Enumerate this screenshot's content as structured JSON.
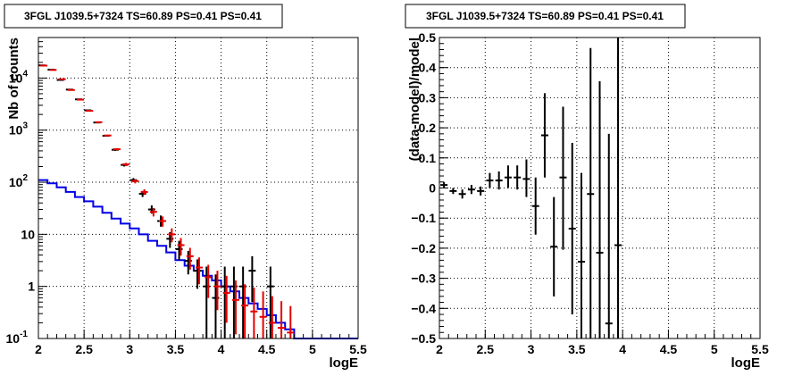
{
  "chart_data": [
    {
      "type": "scatter",
      "title": "3FGL J1039.5+7324 TS=60.89 PS=0.41 PS=0.41",
      "xlabel": "logE",
      "ylabel": "Nb of counts",
      "xlim": [
        2,
        5.5
      ],
      "ylim": [
        0.1,
        60000
      ],
      "yscale": "log",
      "grid": true,
      "x_ticks": [
        "2",
        "2.5",
        "3",
        "3.5",
        "4",
        "4.5",
        "5",
        "5.5"
      ],
      "y_ticks": [
        {
          "base": "10",
          "exp": "-1",
          "value": 0.1
        },
        {
          "base": "1",
          "exp": "",
          "value": 1
        },
        {
          "base": "10",
          "exp": "",
          "value": 10
        },
        {
          "base": "10",
          "exp": "2",
          "value": 100
        },
        {
          "base": "10",
          "exp": "3",
          "value": 1000
        },
        {
          "base": "10",
          "exp": "4",
          "value": 10000
        }
      ],
      "colors": {
        "data": "#000000",
        "model_total": "#e60000",
        "model_source": "#0000e6"
      },
      "bins": [
        2.0,
        2.1,
        2.2,
        2.3,
        2.4,
        2.5,
        2.6,
        2.7,
        2.8,
        2.9,
        3.0,
        3.1,
        3.2,
        3.3,
        3.4,
        3.5,
        3.6,
        3.7,
        3.8,
        3.9,
        4.0,
        4.1,
        4.2,
        4.3,
        4.4,
        4.5,
        4.6,
        4.7,
        4.8,
        4.9,
        5.0,
        5.1,
        5.2,
        5.3,
        5.4,
        5.5
      ],
      "series": [
        {
          "kind": "data",
          "x": [
            2.05,
            2.15,
            2.25,
            2.35,
            2.45,
            2.55,
            2.65,
            2.75,
            2.85,
            2.95,
            3.05,
            3.15,
            3.25,
            3.35,
            3.45,
            3.55,
            3.65,
            3.75,
            3.85,
            3.95,
            4.05,
            4.15,
            4.25,
            4.35,
            4.55
          ],
          "y": [
            17500,
            14500,
            9200,
            6000,
            3900,
            2400,
            1400,
            780,
            420,
            215,
            110,
            60,
            30,
            18,
            8.2,
            5.2,
            3.1,
            2,
            1,
            0.6,
            1,
            1,
            1,
            2,
            1
          ],
          "ylo": [
            17300,
            14300,
            9000,
            5900,
            3800,
            2350,
            1360,
            750,
            400,
            200,
            100,
            52,
            25,
            14,
            5.5,
            3.2,
            1.7,
            0.9,
            0.1,
            0.1,
            0.1,
            0.1,
            0.1,
            0.5,
            0.1
          ],
          "yhi": [
            17700,
            14700,
            9400,
            6100,
            4000,
            2450,
            1440,
            810,
            440,
            230,
            120,
            68,
            36,
            23,
            11,
            7.5,
            4.8,
            3.3,
            2.4,
            1.7,
            2.4,
            2.4,
            2.4,
            3.8,
            2.4
          ]
        },
        {
          "kind": "model",
          "x": [
            2.05,
            2.15,
            2.25,
            2.35,
            2.45,
            2.55,
            2.65,
            2.75,
            2.85,
            2.95,
            3.05,
            3.15,
            3.25,
            3.35,
            3.45,
            3.55,
            3.65,
            3.75,
            3.85,
            3.95,
            4.05,
            4.15,
            4.25,
            4.35,
            4.45,
            4.55,
            4.65,
            4.75
          ],
          "y": [
            17300,
            14300,
            9500,
            5900,
            3850,
            2350,
            1420,
            790,
            430,
            220,
            105,
            65,
            27,
            18,
            10,
            6.2,
            3.8,
            2.3,
            1.5,
            1,
            0.75,
            0.55,
            0.43,
            0.33,
            0.26,
            0.2,
            0.16,
            0.13
          ],
          "ylo": [
            17100,
            14100,
            9300,
            5800,
            3750,
            2300,
            1380,
            760,
            410,
            205,
            95,
            57,
            22,
            14,
            7,
            3.9,
            2.1,
            1.1,
            0.6,
            0.35,
            0.2,
            0.12,
            0.1,
            0.1,
            0.1,
            0.1,
            0.1,
            0.1
          ],
          "yhi": [
            17500,
            14500,
            9700,
            6000,
            3950,
            2400,
            1460,
            820,
            450,
            235,
            115,
            73,
            32,
            22,
            13,
            8.5,
            5.5,
            3.6,
            2.6,
            2,
            1.6,
            1.3,
            1.1,
            0.95,
            0.8,
            0.65,
            0.52,
            0.42
          ]
        }
      ],
      "source_hist": [
        110,
        95,
        80,
        65,
        52,
        43,
        34,
        26,
        20,
        16,
        13,
        10,
        7.5,
        6,
        4.5,
        3.2,
        2.5,
        2,
        1.6,
        1.3,
        1,
        0.8,
        0.6,
        0.47,
        0.37,
        0.28,
        0.2,
        0.15,
        0.1,
        0.1,
        0.1,
        0.1,
        0.1,
        0.1,
        0.1
      ]
    },
    {
      "type": "scatter",
      "title": "3FGL J1039.5+7324 TS=60.89 PS=0.41 PS=0.41",
      "xlabel": "logE",
      "ylabel": "(data-model)/model",
      "xlim": [
        2,
        5.5
      ],
      "ylim": [
        -0.5,
        0.5
      ],
      "grid": true,
      "x_ticks": [
        "2",
        "2.5",
        "3",
        "3.5",
        "4",
        "4.5",
        "5",
        "5.5"
      ],
      "y_ticks": [
        "-0.5",
        "-0.4",
        "-0.3",
        "-0.2",
        "-0.1",
        "0",
        "0.1",
        "0.2",
        "0.3",
        "0.4",
        "0.5"
      ],
      "series": [
        {
          "kind": "residual",
          "x": [
            2.05,
            2.15,
            2.25,
            2.35,
            2.45,
            2.55,
            2.65,
            2.75,
            2.85,
            2.95,
            3.05,
            3.15,
            3.25,
            3.35,
            3.45,
            3.55,
            3.65,
            3.75,
            3.85,
            3.95
          ],
          "y": [
            0.01,
            -0.01,
            -0.02,
            -0.005,
            -0.01,
            0.025,
            0.025,
            0.035,
            0.035,
            0.03,
            -0.06,
            0.175,
            -0.195,
            0.035,
            -0.135,
            -0.245,
            -0.02,
            -0.215,
            -0.45,
            -0.19
          ],
          "ylo": [
            0.0,
            -0.02,
            -0.035,
            -0.02,
            -0.025,
            0.0,
            -0.005,
            0.0,
            -0.005,
            -0.03,
            -0.155,
            0.035,
            -0.36,
            -0.205,
            -0.42,
            -0.5,
            -0.5,
            -0.5,
            -0.5,
            -0.5
          ],
          "yhi": [
            0.02,
            0.0,
            -0.005,
            0.01,
            0.005,
            0.05,
            0.055,
            0.075,
            0.075,
            0.095,
            0.035,
            0.315,
            -0.03,
            0.27,
            0.15,
            0.05,
            0.465,
            0.355,
            0.18,
            0.5
          ]
        }
      ]
    }
  ]
}
